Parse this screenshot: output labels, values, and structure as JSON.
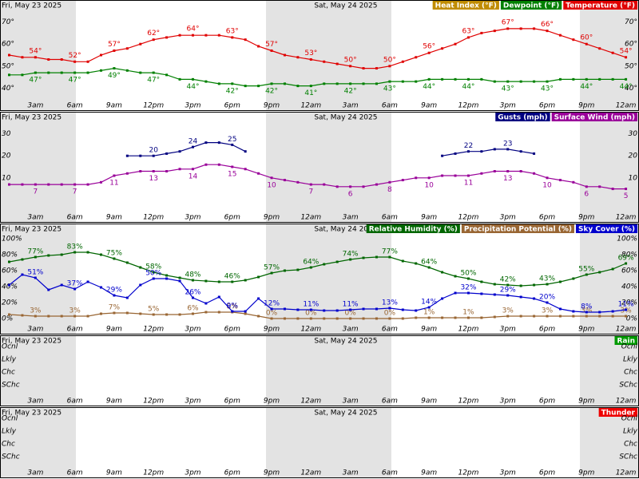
{
  "time": {
    "x": [
      1,
      2,
      3,
      4,
      5,
      6,
      7,
      8,
      9,
      10,
      11,
      12,
      13,
      14,
      15,
      16,
      17,
      18,
      19,
      20,
      21,
      22,
      23,
      24,
      25,
      26,
      27,
      28,
      29,
      30,
      31,
      32,
      33,
      34,
      35,
      36,
      37,
      38,
      39,
      40,
      41,
      42,
      43,
      44,
      45,
      46,
      47,
      48
    ],
    "xlim": [
      0.3,
      49
    ],
    "xticks": [
      {
        "value": 3,
        "label": "3am"
      },
      {
        "value": 6,
        "label": "6am"
      },
      {
        "value": 9,
        "label": "9am"
      },
      {
        "value": 12,
        "label": "12pm"
      },
      {
        "value": 15,
        "label": "3pm"
      },
      {
        "value": 18,
        "label": "6pm"
      },
      {
        "value": 21,
        "label": "9pm"
      },
      {
        "value": 24,
        "label": "12am"
      },
      {
        "value": 27,
        "label": "3am"
      },
      {
        "value": 30,
        "label": "6am"
      },
      {
        "value": 33,
        "label": "9am"
      },
      {
        "value": 36,
        "label": "12pm"
      },
      {
        "value": 39,
        "label": "3pm"
      },
      {
        "value": 42,
        "label": "6pm"
      },
      {
        "value": 45,
        "label": "9pm"
      },
      {
        "value": 48,
        "label": "12am"
      }
    ],
    "dates": [
      {
        "value": 0,
        "label": "Fri, May 23 2025"
      },
      {
        "value": 24,
        "label": "Sat, May 24 2025"
      }
    ]
  },
  "chart_data": [
    {
      "type": "line",
      "ylim": [
        30,
        80
      ],
      "yticks": [
        {
          "value": 70,
          "label": "70°"
        },
        {
          "value": 60,
          "label": "60°"
        },
        {
          "value": 50,
          "label": "50°"
        },
        {
          "value": 40,
          "label": "40°"
        }
      ],
      "grid": false,
      "series": [
        {
          "name": "Heat Index (°F)",
          "color": "#c08c00"
        },
        {
          "name": "Dewpoint (°F)",
          "color": "#008000",
          "values": [
            46,
            46,
            47,
            47,
            47,
            47,
            47,
            48,
            49,
            48,
            47,
            47,
            46,
            44,
            44,
            43,
            42,
            42,
            41,
            41,
            42,
            42,
            41,
            41,
            42,
            42,
            42,
            42,
            42,
            43,
            43,
            43,
            44,
            44,
            44,
            44,
            44,
            43,
            43,
            43,
            43,
            43,
            44,
            44,
            44,
            44,
            44,
            44
          ],
          "value_labels": [
            null,
            null,
            "47°",
            null,
            null,
            "47°",
            null,
            null,
            "49°",
            null,
            null,
            "47°",
            null,
            null,
            "44°",
            null,
            null,
            "42°",
            null,
            null,
            "42°",
            null,
            null,
            "41°",
            null,
            null,
            "42°",
            null,
            null,
            "43°",
            null,
            null,
            "44°",
            null,
            null,
            "44°",
            null,
            null,
            "43°",
            null,
            null,
            "43°",
            null,
            null,
            "44°",
            null,
            null,
            "44°"
          ]
        },
        {
          "name": "Temperature (°F)",
          "color": "#e00000",
          "values": [
            55,
            54,
            54,
            53,
            53,
            52,
            52,
            55,
            57,
            58,
            60,
            62,
            63,
            64,
            64,
            64,
            64,
            63,
            62,
            59,
            57,
            55,
            54,
            53,
            52,
            51,
            50,
            49,
            49,
            50,
            52,
            54,
            56,
            58,
            60,
            63,
            65,
            66,
            67,
            67,
            67,
            66,
            64,
            62,
            60,
            58,
            56,
            54
          ],
          "value_labels": [
            null,
            null,
            "54°",
            null,
            null,
            "52°",
            null,
            null,
            "57°",
            null,
            null,
            "62°",
            null,
            null,
            "64°",
            null,
            null,
            "63°",
            null,
            null,
            "57°",
            null,
            null,
            "53°",
            null,
            null,
            "50°",
            null,
            null,
            "50°",
            null,
            null,
            "56°",
            null,
            null,
            "63°",
            null,
            null,
            "67°",
            null,
            null,
            "66°",
            null,
            null,
            "60°",
            null,
            null,
            "54°"
          ]
        }
      ]
    },
    {
      "type": "line",
      "ylim": [
        -10,
        40
      ],
      "yticks": [
        30,
        20,
        10
      ],
      "grid": false,
      "series": [
        {
          "name": "Gusts (mph)",
          "color": "#000080",
          "values": [
            null,
            null,
            null,
            null,
            null,
            null,
            null,
            null,
            null,
            20,
            20,
            20,
            21,
            22,
            24,
            26,
            26,
            25,
            22,
            null,
            null,
            null,
            null,
            null,
            null,
            null,
            null,
            null,
            null,
            null,
            null,
            null,
            null,
            20,
            21,
            22,
            22,
            23,
            23,
            22,
            21,
            null,
            null,
            null,
            null,
            null,
            null,
            null
          ],
          "value_labels": [
            null,
            null,
            null,
            null,
            null,
            null,
            null,
            null,
            null,
            null,
            null,
            "20",
            null,
            null,
            "24",
            null,
            null,
            "25",
            null,
            null,
            null,
            null,
            null,
            null,
            null,
            null,
            null,
            null,
            null,
            null,
            null,
            null,
            null,
            null,
            null,
            "22",
            null,
            null,
            "23",
            null,
            null,
            null,
            null,
            null,
            null,
            null,
            null,
            null
          ]
        },
        {
          "name": "Surface Wind (mph)",
          "color": "#990099",
          "values": [
            7,
            7,
            7,
            7,
            7,
            7,
            7,
            8,
            11,
            12,
            13,
            13,
            13,
            14,
            14,
            16,
            16,
            15,
            14,
            12,
            10,
            9,
            8,
            7,
            7,
            6,
            6,
            6,
            7,
            8,
            9,
            10,
            10,
            11,
            11,
            11,
            12,
            13,
            13,
            13,
            12,
            10,
            9,
            8,
            6,
            6,
            5,
            5
          ],
          "value_labels": [
            null,
            null,
            "7",
            null,
            null,
            "7",
            null,
            null,
            "11",
            null,
            null,
            "13",
            null,
            null,
            "14",
            null,
            null,
            "15",
            null,
            null,
            "10",
            null,
            null,
            "7",
            null,
            null,
            "6",
            null,
            null,
            "8",
            null,
            null,
            "10",
            null,
            null,
            "11",
            null,
            null,
            "13",
            null,
            null,
            "10",
            null,
            null,
            "6",
            null,
            null,
            "5"
          ]
        }
      ]
    },
    {
      "type": "line",
      "ylim": [
        -19,
        119
      ],
      "yticks": [
        {
          "value": 100,
          "label": "100%"
        },
        {
          "value": 80,
          "label": "80%"
        },
        {
          "value": 60,
          "label": "60%"
        },
        {
          "value": 40,
          "label": "40%"
        },
        {
          "value": 20,
          "label": "20%"
        },
        {
          "value": 0,
          "label": "0%"
        }
      ],
      "grid": false,
      "series": [
        {
          "name": "Relative Humidity (%)",
          "color": "#006600",
          "values": [
            71,
            74,
            77,
            79,
            80,
            83,
            83,
            80,
            75,
            70,
            64,
            58,
            54,
            51,
            48,
            47,
            46,
            46,
            48,
            52,
            57,
            60,
            61,
            64,
            68,
            71,
            74,
            76,
            77,
            77,
            72,
            69,
            64,
            58,
            53,
            50,
            46,
            43,
            42,
            41,
            42,
            43,
            46,
            50,
            55,
            58,
            62,
            69
          ],
          "value_labels": [
            null,
            null,
            "77%",
            null,
            null,
            "83%",
            null,
            null,
            "75%",
            null,
            null,
            "58%",
            null,
            null,
            "48%",
            null,
            null,
            "46%",
            null,
            null,
            "57%",
            null,
            null,
            "64%",
            null,
            null,
            "74%",
            null,
            null,
            "77%",
            null,
            null,
            "64%",
            null,
            null,
            "50%",
            null,
            null,
            "42%",
            null,
            null,
            "43%",
            null,
            null,
            "55%",
            null,
            null,
            "69%"
          ]
        },
        {
          "name": "Precipitation Potential (%)",
          "color": "#996633",
          "values": [
            5,
            4,
            3,
            3,
            3,
            3,
            3,
            6,
            7,
            7,
            6,
            5,
            5,
            5,
            6,
            8,
            8,
            8,
            6,
            3,
            0,
            0,
            0,
            0,
            0,
            0,
            0,
            0,
            0,
            0,
            0,
            1,
            1,
            1,
            1,
            1,
            1,
            2,
            3,
            3,
            3,
            3,
            3,
            3,
            3,
            3,
            3,
            3
          ],
          "value_labels": [
            null,
            null,
            "3%",
            null,
            null,
            "3%",
            null,
            null,
            "7%",
            null,
            null,
            "5%",
            null,
            null,
            "6%",
            null,
            null,
            "8%",
            null,
            null,
            "0%",
            null,
            null,
            "0%",
            null,
            null,
            "0%",
            null,
            null,
            "0%",
            null,
            null,
            "1%",
            null,
            null,
            "1%",
            null,
            null,
            "3%",
            null,
            null,
            "3%",
            null,
            null,
            "3%",
            null,
            null,
            "3%"
          ]
        },
        {
          "name": "Sky Cover (%)",
          "color": "#0000cc",
          "values": [
            42,
            55,
            51,
            36,
            42,
            37,
            46,
            39,
            29,
            26,
            42,
            50,
            50,
            47,
            26,
            19,
            27,
            9,
            9,
            25,
            12,
            12,
            11,
            11,
            10,
            10,
            11,
            12,
            12,
            13,
            11,
            10,
            14,
            25,
            32,
            32,
            31,
            30,
            29,
            27,
            25,
            20,
            12,
            9,
            8,
            8,
            9,
            11
          ],
          "value_labels": [
            null,
            null,
            "51%",
            null,
            null,
            "37%",
            null,
            null,
            "29%",
            null,
            null,
            "50%",
            null,
            null,
            "26%",
            null,
            null,
            "9%",
            null,
            null,
            "12%",
            null,
            null,
            "11%",
            null,
            null,
            "11%",
            null,
            null,
            "13%",
            null,
            null,
            "14%",
            null,
            null,
            "32%",
            null,
            null,
            "29%",
            null,
            null,
            "20%",
            null,
            null,
            "8%",
            null,
            null,
            "11%"
          ]
        }
      ]
    },
    {
      "type": "category-strip",
      "ycategories": [
        "Ocnl",
        "Lkly",
        "Chc",
        "SChc"
      ],
      "series": [
        {
          "name": "Rain",
          "color": "#009900"
        }
      ]
    },
    {
      "type": "category-strip",
      "ycategories": [
        "Ocnl",
        "Lkly",
        "Chc",
        "SChc"
      ],
      "series": [
        {
          "name": "Thunder",
          "color": "#ee0000"
        }
      ]
    }
  ]
}
